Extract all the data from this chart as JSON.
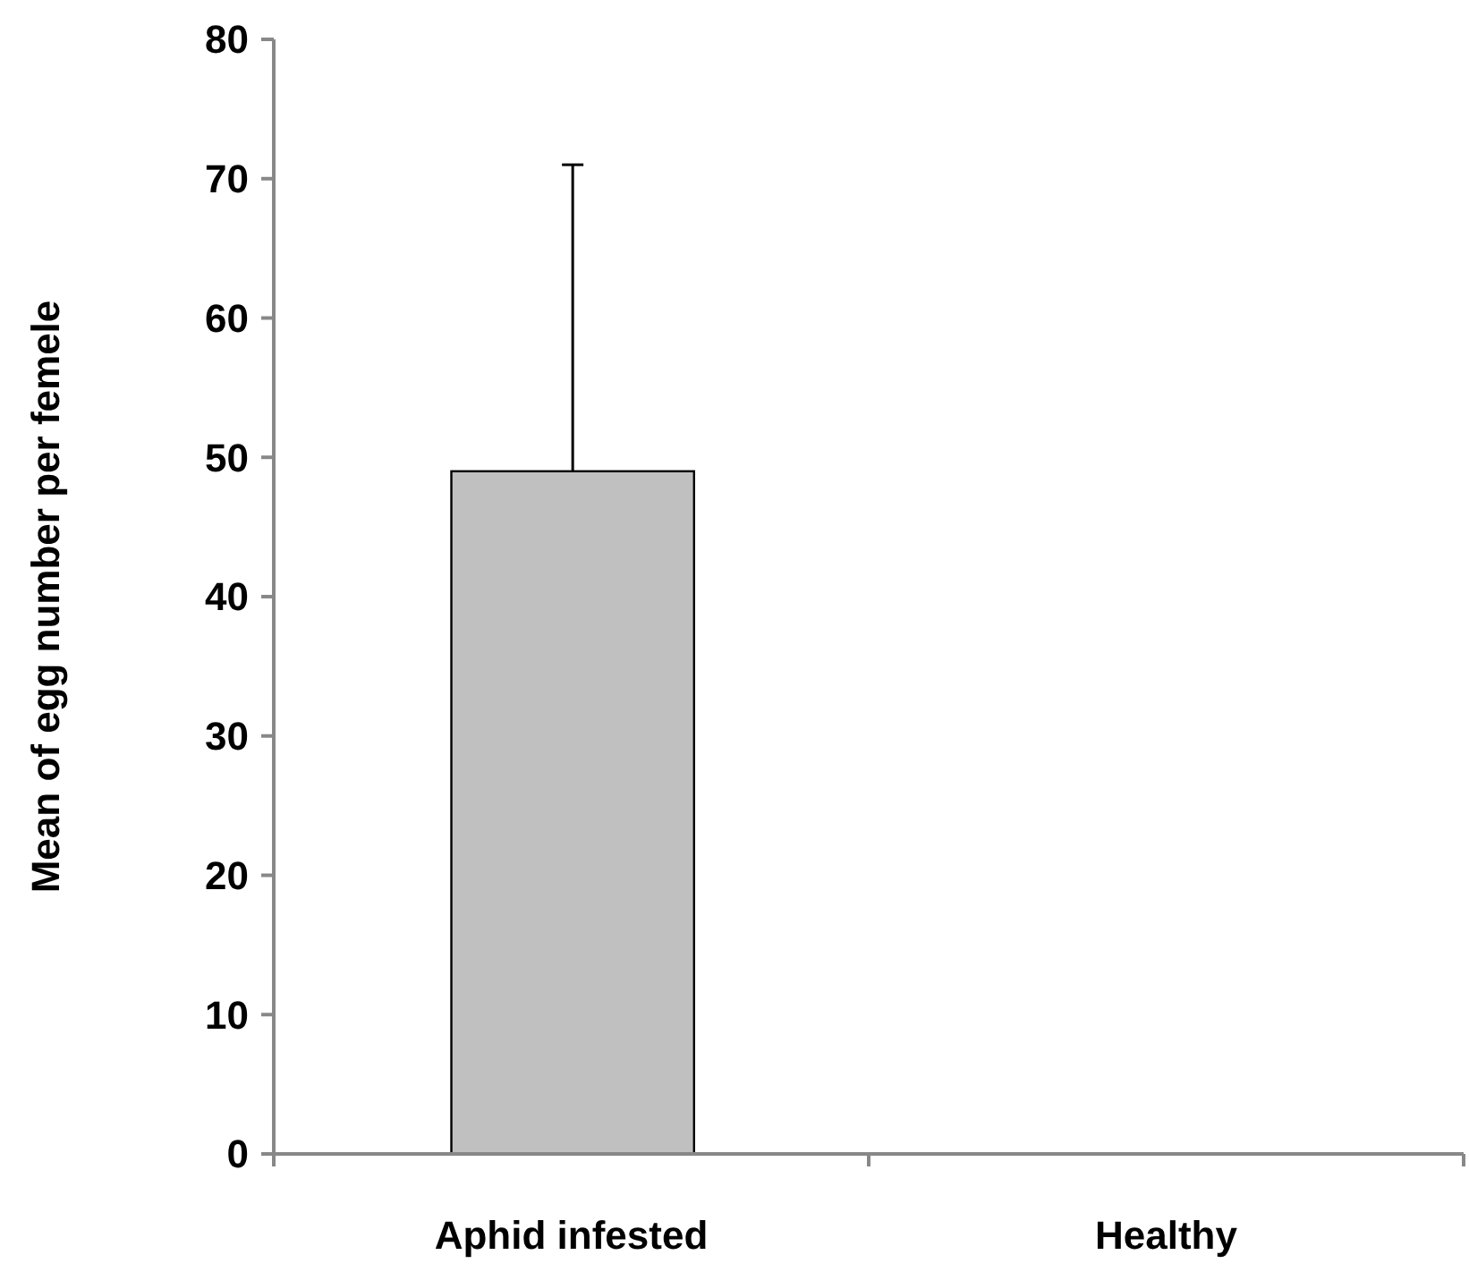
{
  "chart_data": {
    "type": "bar",
    "ylabel": "Mean of egg number per femele",
    "categories": [
      "Aphid infested",
      "Healthy"
    ],
    "values": [
      49,
      0
    ],
    "errors": [
      [
        49,
        71
      ],
      null
    ],
    "color": "#c0c0c0",
    "ylim": [
      0,
      80
    ],
    "yticks": [
      0,
      10,
      20,
      30,
      40,
      50,
      60,
      70,
      80
    ],
    "grid": false
  }
}
